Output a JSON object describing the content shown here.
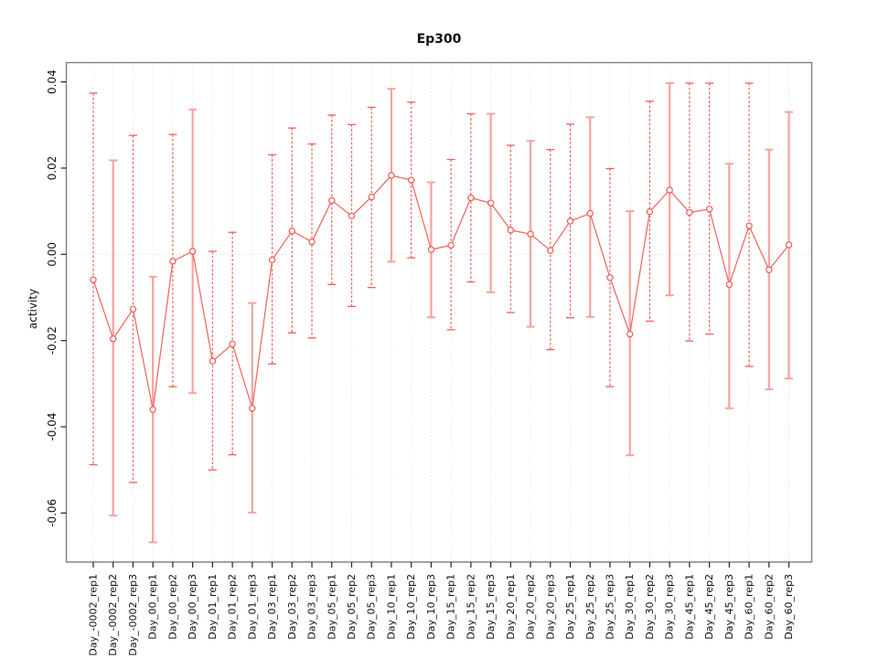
{
  "window": {
    "background": "#ffffff"
  },
  "colors": {
    "accent_dark": "#ee5f58",
    "accent_light": "#f6a39d",
    "line": "#ef615b",
    "point_stroke": "#ee5a52",
    "point_fill": "#ffffff",
    "grid": "#dcdcdc",
    "zero_line": "#d0d0d0",
    "box": "#7e7e7e",
    "tick": "#222222",
    "text": "#111111"
  },
  "chart_data": {
    "type": "line",
    "title": "Ep300",
    "xlabel": "",
    "ylabel": "activity",
    "ylim": [
      -0.0714,
      0.0445
    ],
    "yticks": [
      0.04,
      0.02,
      0.0,
      -0.02,
      -0.04,
      -0.06
    ],
    "ytick_labels": [
      "0.04",
      "0.02",
      "0.00",
      "-0.02",
      "-0.04",
      "-0.06"
    ],
    "grid": "vertical dotted gridline per category; dotted horizontal line at y=0",
    "legend": "none",
    "marker": "open-circle",
    "error_bars": true,
    "categories": [
      "Day_-0002_rep1",
      "Day_-0002_rep2",
      "Day_-0002_rep3",
      "Day_00_rep1",
      "Day_00_rep2",
      "Day_00_rep3",
      "Day_01_rep1",
      "Day_01_rep2",
      "Day_01_rep3",
      "Day_03_rep1",
      "Day_03_rep2",
      "Day_03_rep3",
      "Day_05_rep1",
      "Day_05_rep2",
      "Day_05_rep3",
      "Day_10_rep1",
      "Day_10_rep2",
      "Day_10_rep3",
      "Day_15_rep1",
      "Day_15_rep2",
      "Day_15_rep3",
      "Day_20_rep1",
      "Day_20_rep2",
      "Day_20_rep3",
      "Day_25_rep1",
      "Day_25_rep2",
      "Day_25_rep3",
      "Day_30_rep1",
      "Day_30_rep2",
      "Day_30_rep3",
      "Day_45_rep1",
      "Day_45_rep2",
      "Day_45_rep3",
      "Day_60_rep1",
      "Day_60_rep2",
      "Day_60_rep3"
    ],
    "series": [
      {
        "name": "activity",
        "values": [
          -0.0059,
          -0.0196,
          -0.0127,
          -0.036,
          -0.0016,
          0.0007,
          -0.0248,
          -0.0208,
          -0.0357,
          -0.0013,
          0.0054,
          0.0029,
          0.0125,
          0.0089,
          0.0133,
          0.0183,
          0.0172,
          0.0011,
          0.0021,
          0.0131,
          0.0119,
          0.0056,
          0.0047,
          0.0009,
          0.0077,
          0.0095,
          -0.0054,
          -0.0185,
          0.0099,
          0.0149,
          0.0097,
          0.0105,
          -0.007,
          0.0066,
          -0.0036,
          0.0022
        ]
      }
    ],
    "error_upper": [
      0.0374,
      0.0218,
      0.0276,
      -0.0052,
      0.0278,
      0.0336,
      0.0007,
      0.0051,
      -0.0113,
      0.0231,
      0.0293,
      0.0256,
      0.0323,
      0.0301,
      0.0341,
      0.0384,
      0.0353,
      0.0167,
      0.022,
      0.0326,
      0.0326,
      0.0253,
      0.0263,
      0.0243,
      0.0302,
      0.0318,
      0.0199,
      0.01,
      0.0355,
      0.0397,
      0.0397,
      0.0397,
      0.021,
      0.0397,
      0.0243,
      0.033
    ],
    "error_lower": [
      -0.0488,
      -0.0606,
      -0.0529,
      -0.0668,
      -0.0307,
      -0.0322,
      -0.05,
      -0.0465,
      -0.0599,
      -0.0254,
      -0.0182,
      -0.0194,
      -0.007,
      -0.0121,
      -0.0077,
      -0.0017,
      -0.0008,
      -0.0146,
      -0.0175,
      -0.0064,
      -0.0088,
      -0.0135,
      -0.0168,
      -0.0221,
      -0.0147,
      -0.0145,
      -0.0307,
      -0.0466,
      -0.0155,
      -0.0095,
      -0.0201,
      -0.0185,
      -0.0357,
      -0.026,
      -0.0313,
      -0.0288
    ],
    "bar_styles": [
      "dark",
      "light",
      "dark",
      "light",
      "dark",
      "light",
      "dark",
      "dark",
      "light",
      "dark",
      "dark",
      "dark",
      "dark",
      "dark",
      "dark",
      "light",
      "dark",
      "light",
      "dark",
      "dark",
      "light",
      "dark",
      "light",
      "dark",
      "dark",
      "light",
      "dark",
      "light",
      "dark",
      "light",
      "dark",
      "dark",
      "light",
      "dark",
      "light",
      "light"
    ]
  }
}
